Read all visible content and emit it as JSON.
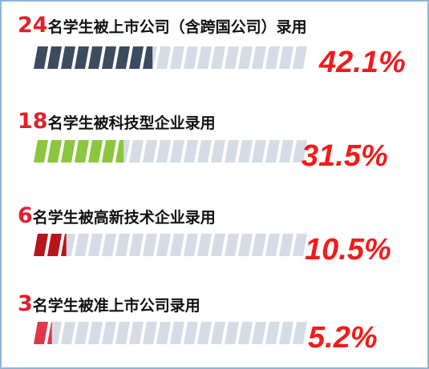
{
  "chart_data": {
    "type": "progress",
    "counts": [
      24,
      18,
      6,
      3
    ],
    "categories": [
      "名学生被上市公司（含跨国公司）录用",
      "名学生被科技型企业录用",
      "名学生被高新技术企业录用",
      "名学生被准上市公司录用"
    ],
    "values": [
      42.1,
      31.5,
      10.5,
      5.2
    ],
    "value_labels": [
      "42.1%",
      "31.5%",
      "10.5%",
      "5.2%"
    ],
    "colors": [
      "#3d4b5e",
      "#8cc63e",
      "#b8141c",
      "#e0384b"
    ],
    "xlim": [
      0,
      100
    ]
  }
}
